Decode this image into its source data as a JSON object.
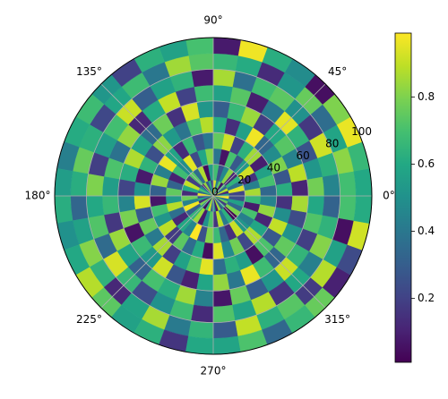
{
  "chart_data": {
    "type": "polar-heatmap",
    "theta_edges": [
      0,
      10,
      20,
      30,
      40,
      50,
      60,
      70,
      80,
      90,
      100,
      110,
      120,
      130,
      140,
      150,
      160,
      170,
      180,
      190,
      200,
      210,
      220,
      230,
      240,
      250,
      260,
      270,
      280,
      290,
      300,
      310,
      320,
      330,
      340,
      350,
      360
    ],
    "r_edges": [
      0,
      10,
      20,
      30,
      40,
      50,
      60,
      70,
      80,
      90,
      100
    ],
    "values": [
      [
        0.55,
        0.12,
        0.88,
        0.31,
        0.67,
        0.05,
        0.74,
        0.42,
        0.93,
        0.18,
        0.61,
        0.27,
        0.83,
        0.09,
        0.48,
        0.71,
        0.36,
        0.96,
        0.22,
        0.58,
        0.14,
        0.79,
        0.45,
        0.03,
        0.66,
        0.91,
        0.33,
        0.52,
        0.07,
        0.85,
        0.29,
        0.62,
        0.17,
        0.76,
        0.4,
        0.98
      ],
      [
        0.21,
        0.94,
        0.38,
        0.64,
        0.11,
        0.82,
        0.47,
        0.26,
        0.69,
        0.56,
        0.04,
        0.87,
        0.35,
        0.73,
        0.19,
        0.9,
        0.6,
        0.13,
        0.77,
        0.44,
        0.97,
        0.3,
        0.65,
        0.84,
        0.08,
        0.5,
        0.72,
        0.16,
        0.89,
        0.41,
        0.63,
        0.02,
        0.8,
        0.34,
        0.57,
        0.24
      ],
      [
        0.86,
        0.43,
        0.15,
        0.92,
        0.53,
        0.28,
        0.7,
        0.06,
        0.39,
        0.81,
        0.59,
        0.23,
        0.95,
        0.49,
        0.68,
        0.1,
        0.32,
        0.75,
        0.54,
        0.88,
        0.37,
        0.12,
        0.6,
        0.46,
        0.99,
        0.25,
        0.81,
        0.67,
        0.33,
        0.14,
        0.91,
        0.52,
        0.43,
        0.7,
        0.08,
        0.66
      ],
      [
        0.34,
        0.7,
        0.57,
        0.09,
        0.85,
        0.63,
        0.2,
        0.92,
        0.75,
        0.4,
        0.27,
        0.66,
        0.13,
        0.58,
        0.96,
        0.43,
        0.84,
        0.31,
        0.07,
        0.69,
        0.52,
        0.89,
        0.18,
        0.74,
        0.36,
        0.61,
        0.04,
        0.94,
        0.47,
        0.78,
        0.22,
        0.87,
        0.59,
        0.11,
        0.83,
        0.45
      ],
      [
        0.62,
        0.27,
        0.8,
        0.48,
        0.33,
        0.97,
        0.56,
        0.14,
        0.61,
        0.88,
        0.71,
        0.39,
        0.54,
        0.82,
        0.25,
        0.64,
        0.08,
        0.5,
        0.93,
        0.29,
        0.76,
        0.41,
        0.86,
        0.19,
        0.57,
        0.72,
        0.95,
        0.36,
        0.63,
        0.55,
        0.05,
        0.71,
        0.28,
        0.9,
        0.49,
        0.15
      ],
      [
        0.11,
        0.89,
        0.44,
        0.73,
        0.6,
        0.18,
        0.84,
        0.66,
        0.3,
        0.52,
        0.93,
        0.15,
        0.77,
        0.35,
        0.58,
        0.87,
        0.62,
        0.21,
        0.45,
        0.79,
        0.06,
        0.67,
        0.53,
        0.92,
        0.27,
        0.1,
        0.59,
        0.83,
        0.4,
        0.96,
        0.68,
        0.33,
        0.75,
        0.51,
        0.23,
        0.86
      ],
      [
        0.78,
        0.52,
        0.26,
        0.64,
        0.95,
        0.41,
        0.09,
        0.73,
        0.57,
        0.68,
        0.2,
        0.9,
        0.61,
        0.12,
        0.83,
        0.38,
        0.71,
        0.55,
        0.66,
        0.17,
        0.84,
        0.58,
        0.31,
        0.7,
        0.62,
        0.85,
        0.44,
        0.07,
        0.76,
        0.3,
        0.53,
        0.91,
        0.65,
        0.19,
        0.72,
        0.6
      ],
      [
        0.45,
        0.63,
        0.92,
        0.17,
        0.5,
        0.74,
        0.68,
        0.37,
        0.86,
        0.08,
        0.64,
        0.57,
        0.3,
        0.91,
        0.69,
        0.55,
        0.19,
        0.8,
        0.6,
        0.72,
        0.35,
        0.93,
        0.66,
        0.24,
        0.5,
        0.68,
        0.13,
        0.72,
        0.58,
        0.88,
        0.16,
        0.6,
        0.43,
        0.81,
        0.64,
        0.32
      ],
      [
        0.69,
        0.82,
        0.58,
        0.36,
        0.76,
        0.52,
        0.13,
        0.61,
        0.66,
        0.73,
        0.85,
        0.4,
        0.68,
        0.59,
        0.22,
        0.63,
        0.76,
        0.62,
        0.33,
        0.57,
        0.81,
        0.64,
        0.12,
        0.58,
        0.86,
        0.41,
        0.65,
        0.29,
        0.9,
        0.63,
        0.73,
        0.18,
        0.88,
        0.57,
        0.05,
        0.7
      ],
      [
        0.6,
        0.66,
        0.96,
        0.8,
        0.05,
        0.48,
        0.62,
        0.97,
        0.08,
        0.7,
        0.57,
        0.63,
        0.2,
        0.52,
        0.68,
        0.61,
        0.43,
        0.55,
        0.62,
        0.5,
        0.6,
        0.88,
        0.74,
        0.57,
        0.63,
        0.16,
        0.6,
        0.58,
        0.71,
        0.34,
        0.66,
        0.76,
        0.1,
        0.23,
        0.92,
        0.61
      ]
    ],
    "clim": [
      0.01,
      0.99
    ],
    "xticks": [
      {
        "value": 0,
        "label": "0°"
      },
      {
        "value": 45,
        "label": "45°"
      },
      {
        "value": 90,
        "label": "90°"
      },
      {
        "value": 135,
        "label": "135°"
      },
      {
        "value": 180,
        "label": "180°"
      },
      {
        "value": 225,
        "label": "225°"
      },
      {
        "value": 270,
        "label": "270°"
      },
      {
        "value": 315,
        "label": "315°"
      }
    ],
    "yticks": [
      0,
      20,
      40,
      60,
      80,
      100
    ],
    "ylim": [
      0,
      100
    ],
    "colorbar_ticks": [
      0.2,
      0.4,
      0.6,
      0.8
    ],
    "grid": true
  }
}
